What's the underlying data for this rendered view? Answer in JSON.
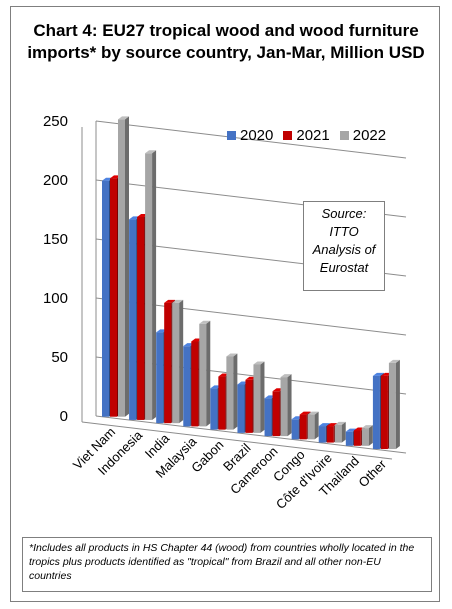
{
  "chart_data": {
    "type": "bar",
    "title": "Chart 4: EU27 tropical wood and wood furniture imports* by source country, Jan-Mar, Million USD",
    "categories": [
      "Viet Nam",
      "Indonesia",
      "India",
      "Malaysia",
      "Gabon",
      "Brazil",
      "Cameroon",
      "Congo",
      "Côte d'Ivoire",
      "Thailand",
      "Other"
    ],
    "series": [
      {
        "name": "2020",
        "color": "#4472c4",
        "values": [
          200,
          170,
          77,
          68,
          35,
          41,
          32,
          17,
          14,
          12,
          62
        ]
      },
      {
        "name": "2021",
        "color": "#c00000",
        "values": [
          202,
          172,
          102,
          72,
          45,
          45,
          38,
          21,
          14,
          13,
          62
        ]
      },
      {
        "name": "2022",
        "color": "#a6a6a6",
        "values": [
          252,
          226,
          102,
          87,
          62,
          58,
          50,
          21,
          15,
          15,
          73
        ]
      }
    ],
    "y_ticks": [
      0,
      50,
      100,
      150,
      200,
      250
    ],
    "ylim": [
      0,
      250
    ],
    "grid": true,
    "legend_position": "top-right",
    "annotation": "Source: ITTO Analysis of Eurostat"
  },
  "legend": {
    "items": [
      {
        "label": "2020",
        "color": "#4472c4"
      },
      {
        "label": "2021",
        "color": "#c00000"
      },
      {
        "label": "2022",
        "color": "#a6a6a6"
      }
    ]
  },
  "source_note": {
    "line1": "Source:",
    "line2": "ITTO",
    "line3": "Analysis of",
    "line4": "Eurostat"
  },
  "footnote": "*Includes all products in HS Chapter 44 (wood) from countries wholly located in the tropics plus products identified as \"tropical\" from Brazil and all other non-EU countries"
}
